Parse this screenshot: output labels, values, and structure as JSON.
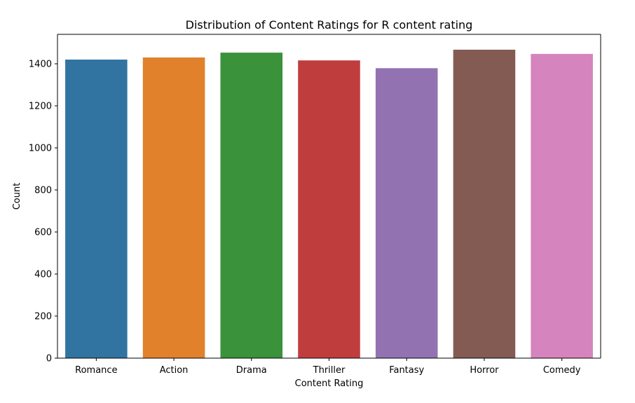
{
  "chart_data": {
    "type": "bar",
    "title": "Distribution of Content Ratings for R content rating",
    "xlabel": "Content Rating",
    "ylabel": "Count",
    "categories": [
      "Romance",
      "Action",
      "Drama",
      "Thriller",
      "Fantasy",
      "Horror",
      "Comedy"
    ],
    "values": [
      1420,
      1430,
      1453,
      1416,
      1379,
      1467,
      1447
    ],
    "colors": [
      "#3274a1",
      "#e1812c",
      "#3a923a",
      "#c03d3e",
      "#9372b2",
      "#845b53",
      "#d684bd"
    ],
    "ylim": [
      0,
      1540
    ],
    "yticks": [
      0,
      200,
      400,
      600,
      800,
      1000,
      1200,
      1400
    ],
    "grid": false,
    "legend": "none"
  }
}
